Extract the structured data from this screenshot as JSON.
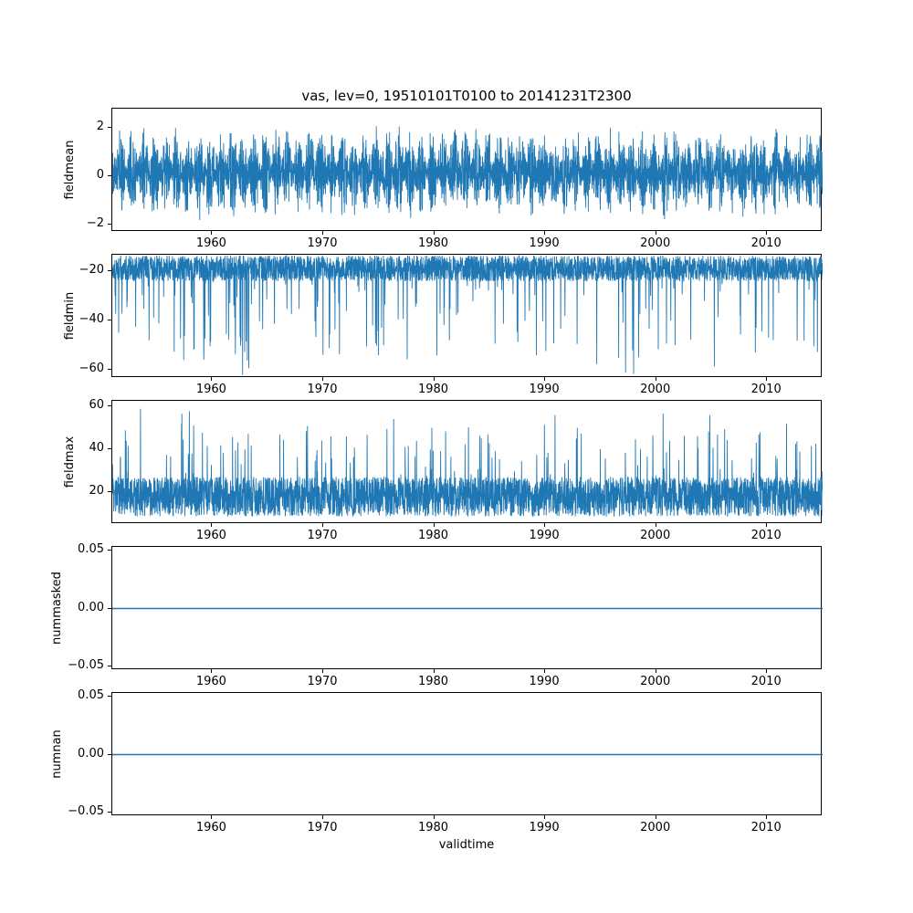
{
  "figure": {
    "background": "#ffffff",
    "text_color": "#000000",
    "frame_color": "#000000"
  },
  "chart_data": {
    "type": "line",
    "title": "vas, lev=0, 19510101T0100 to 20141231T2300",
    "xlabel": "validtime",
    "grid": false,
    "legend": "none",
    "series_color": "#1f77b4",
    "x_range": [
      1951.0,
      2015.0
    ],
    "x_ticks": [
      "1960",
      "1970",
      "1980",
      "1990",
      "2000",
      "2010"
    ],
    "x_tick_values": [
      1960,
      1970,
      1980,
      1990,
      2000,
      2010
    ],
    "subplots": [
      {
        "ylabel": "fieldmean",
        "ylim": [
          -2.3,
          2.8
        ],
        "y_ticks": [
          "−2",
          "0",
          "2"
        ],
        "y_tick_values": [
          -2,
          0,
          2
        ],
        "summary": {
          "envelope_low": -2.0,
          "envelope_high": 2.5,
          "pattern": "dense seasonal oscillation around 0"
        },
        "synth": {
          "kind": "seasonal_noise",
          "n": 4200,
          "base": 0.15,
          "swing": 1.5,
          "noise": 0.55,
          "season_phase": 0.3,
          "clip_low": -2.05,
          "clip_high": 2.55,
          "seed": 11
        }
      },
      {
        "ylabel": "fieldmin",
        "ylim": [
          -63.5,
          -13.2
        ],
        "y_ticks": [
          "−20",
          "−40",
          "−60"
        ],
        "y_tick_values": [
          -20,
          -40,
          -60
        ],
        "summary": {
          "band_low": -24,
          "band_high": -13.5,
          "spikes_to": -62,
          "pattern": "noisy band near -15 with frequent downward spikes"
        },
        "synth": {
          "kind": "spikes",
          "n": 3800,
          "band_low": -24,
          "band_high": -13.5,
          "spike_prob": 0.05,
          "spike_max": 40,
          "dir": -1,
          "clip_low": -62.5,
          "clip_high": -13.3,
          "seed": 22
        }
      },
      {
        "ylabel": "fieldmax",
        "ylim": [
          5.0,
          62.5
        ],
        "y_ticks": [
          "20",
          "40",
          "60"
        ],
        "y_tick_values": [
          20,
          40,
          60
        ],
        "summary": {
          "band_low": 8.5,
          "band_high": 27,
          "spikes_to": 60,
          "pattern": "noisy band near 10-27 with frequent upward spikes"
        },
        "synth": {
          "kind": "spikes",
          "n": 3800,
          "band_low": 8.5,
          "band_high": 27,
          "spike_prob": 0.05,
          "spike_max": 34,
          "dir": 1,
          "clip_low": 7.5,
          "clip_high": 60.5,
          "seed": 33
        }
      },
      {
        "ylabel": "nummasked",
        "ylim": [
          -0.0535,
          0.0535
        ],
        "y_ticks": [
          "−0.05",
          "0.00",
          "0.05"
        ],
        "y_tick_values": [
          -0.05,
          0,
          0.05
        ],
        "summary": {
          "constant_value": 0,
          "pattern": "flat line at zero"
        },
        "synth": {
          "kind": "constant",
          "value": 0,
          "seed": 44
        }
      },
      {
        "ylabel": "numnan",
        "ylim": [
          -0.0535,
          0.0535
        ],
        "y_ticks": [
          "−0.05",
          "0.00",
          "0.05"
        ],
        "y_tick_values": [
          -0.05,
          0,
          0.05
        ],
        "summary": {
          "constant_value": 0,
          "pattern": "flat line at zero"
        },
        "synth": {
          "kind": "constant",
          "value": 0,
          "seed": 55
        }
      }
    ]
  }
}
